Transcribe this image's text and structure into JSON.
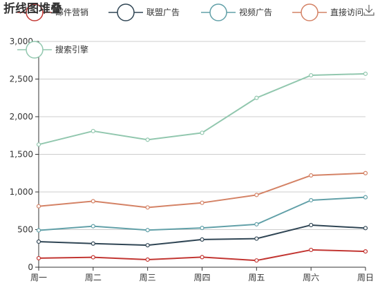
{
  "title": "折线图堆叠",
  "toolbox": {
    "download_icon": "download-icon"
  },
  "chart_data": {
    "type": "line",
    "stacked": true,
    "categories": [
      "周一",
      "周二",
      "周三",
      "周四",
      "周五",
      "周六",
      "周日"
    ],
    "series": [
      {
        "name": "邮件营销",
        "color": "#c23531",
        "values": [
          120,
          132,
          101,
          134,
          90,
          230,
          210
        ]
      },
      {
        "name": "联盟广告",
        "color": "#2f4554",
        "values": [
          340,
          314,
          292,
          368,
          380,
          560,
          520
        ]
      },
      {
        "name": "视频广告",
        "color": "#61a0a8",
        "values": [
          490,
          545,
          493,
          522,
          570,
          890,
          930
        ]
      },
      {
        "name": "直接访问",
        "color": "#d48265",
        "values": [
          810,
          877,
          794,
          856,
          960,
          1220,
          1250
        ]
      },
      {
        "name": "搜索引擎",
        "color": "#91c7ae",
        "values": [
          1630,
          1809,
          1694,
          1786,
          2250,
          2550,
          2570
        ]
      }
    ],
    "yticks": [
      "0",
      "500",
      "1,000",
      "1,500",
      "2,000",
      "2,500",
      "3,000"
    ],
    "ylim": [
      0,
      3000
    ],
    "grid": true,
    "legend": "top"
  }
}
